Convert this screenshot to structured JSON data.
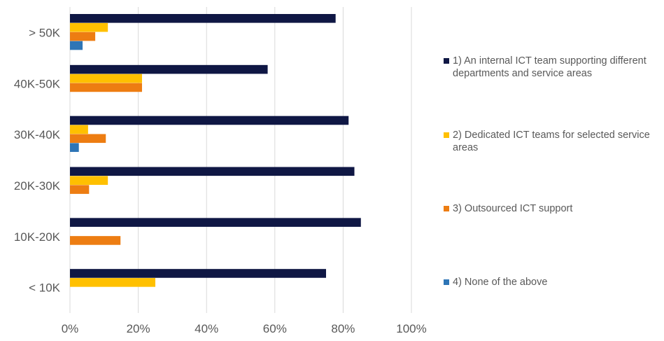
{
  "chart_data": {
    "type": "bar",
    "orientation": "horizontal",
    "categories": [
      "> 50K",
      "40K-50K",
      "30K-40K",
      "20K-30K",
      "10K-20K",
      "< 10K"
    ],
    "series": [
      {
        "name": "1) An internal ICT team supporting different departments and service areas",
        "color": "#0f1744",
        "values": [
          77.8,
          57.9,
          81.6,
          83.3,
          85.2,
          75.0
        ]
      },
      {
        "name": "2) Dedicated ICT teams for selected service areas",
        "color": "#ffc000",
        "values": [
          11.1,
          21.1,
          5.3,
          11.1,
          0,
          25.0
        ]
      },
      {
        "name": "3) Outsourced ICT support",
        "color": "#ed7d12",
        "values": [
          7.4,
          21.1,
          10.5,
          5.6,
          14.8,
          0
        ]
      },
      {
        "name": "4) None of the above",
        "color": "#2e75b6",
        "values": [
          3.7,
          0,
          2.6,
          0,
          0,
          0
        ]
      }
    ],
    "x_ticks": [
      "0%",
      "20%",
      "40%",
      "60%",
      "80%",
      "100%"
    ],
    "xlim": [
      0,
      100
    ],
    "grid": "vertical",
    "legend_position": "right"
  }
}
